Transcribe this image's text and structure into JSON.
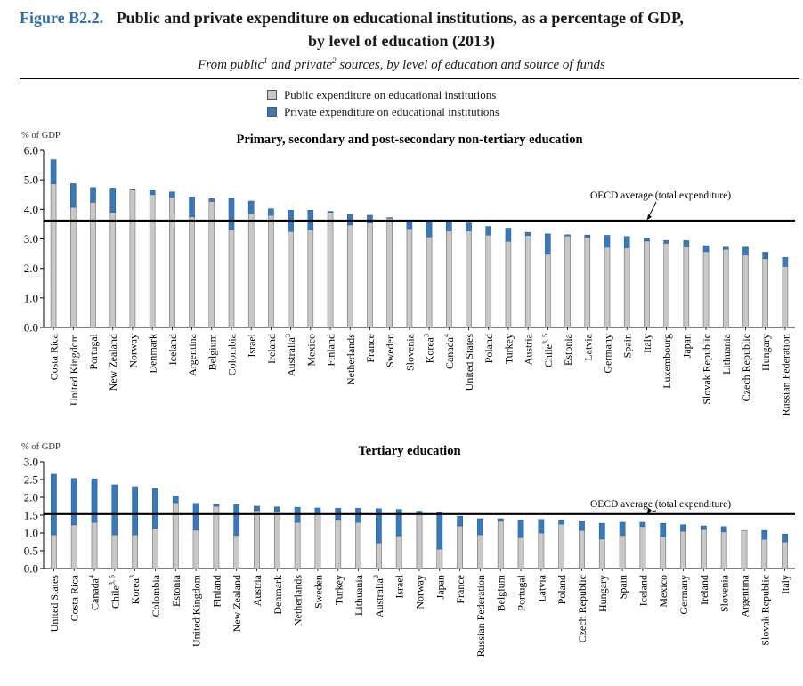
{
  "figure": {
    "label": "Figure B2.2.",
    "title_line1": "Public and private expenditure on educational institutions, as a percentage of GDP,",
    "title_line2": "by level of education (2013)",
    "subtitle_a": "From public",
    "subtitle_sup1": "1",
    "subtitle_b": " and private",
    "subtitle_sup2": "2",
    "subtitle_c": " sources, by level of education and source of funds"
  },
  "legend": {
    "public": "Public expenditure on educational institutions",
    "private": "Private expenditure on educational institutions",
    "public_color": "#c8c8c8",
    "private_color": "#3a79b9"
  },
  "chart_data": [
    {
      "type": "bar",
      "stacked": true,
      "title": "Primary, secondary and post-secondary non-tertiary education",
      "ylabel": "% of GDP",
      "ylim": [
        0,
        6
      ],
      "yticks": [
        "0.0",
        "1.0",
        "2.0",
        "3.0",
        "4.0",
        "5.0",
        "6.0"
      ],
      "reference_line": {
        "label": "OECD average (total expenditure)",
        "value": 3.62
      },
      "categories": [
        {
          "name": "Costa Rica",
          "sup": ""
        },
        {
          "name": "United Kingdom",
          "sup": ""
        },
        {
          "name": "Portugal",
          "sup": ""
        },
        {
          "name": "New Zealand",
          "sup": ""
        },
        {
          "name": "Norway",
          "sup": ""
        },
        {
          "name": "Denmark",
          "sup": ""
        },
        {
          "name": "Iceland",
          "sup": ""
        },
        {
          "name": "Argentina",
          "sup": ""
        },
        {
          "name": "Belgium",
          "sup": ""
        },
        {
          "name": "Colombia",
          "sup": ""
        },
        {
          "name": "Israel",
          "sup": ""
        },
        {
          "name": "Ireland",
          "sup": ""
        },
        {
          "name": "Australia",
          "sup": "3"
        },
        {
          "name": "Mexico",
          "sup": ""
        },
        {
          "name": "Finland",
          "sup": ""
        },
        {
          "name": "Netherlands",
          "sup": ""
        },
        {
          "name": "France",
          "sup": ""
        },
        {
          "name": "Sweden",
          "sup": ""
        },
        {
          "name": "Slovenia",
          "sup": ""
        },
        {
          "name": "Korea",
          "sup": "3"
        },
        {
          "name": "Canada",
          "sup": "4"
        },
        {
          "name": "United States",
          "sup": ""
        },
        {
          "name": "Poland",
          "sup": ""
        },
        {
          "name": "Turkey",
          "sup": ""
        },
        {
          "name": "Austria",
          "sup": ""
        },
        {
          "name": "Chile",
          "sup": "3, 5"
        },
        {
          "name": "Estonia",
          "sup": ""
        },
        {
          "name": "Latvia",
          "sup": ""
        },
        {
          "name": "Germany",
          "sup": ""
        },
        {
          "name": "Spain",
          "sup": ""
        },
        {
          "name": "Italy",
          "sup": ""
        },
        {
          "name": "Luxembourg",
          "sup": ""
        },
        {
          "name": "Japan",
          "sup": ""
        },
        {
          "name": "Slovak Republic",
          "sup": ""
        },
        {
          "name": "Lithuania",
          "sup": ""
        },
        {
          "name": "Czech Republic",
          "sup": ""
        },
        {
          "name": "Hungary",
          "sup": ""
        },
        {
          "name": "Russian Federation",
          "sup": ""
        }
      ],
      "series": [
        {
          "name": "Public expenditure on educational institutions",
          "values": [
            4.87,
            4.07,
            4.24,
            3.9,
            4.68,
            4.5,
            4.42,
            3.75,
            4.27,
            3.32,
            3.85,
            3.8,
            3.25,
            3.31,
            3.9,
            3.47,
            3.54,
            3.7,
            3.35,
            3.07,
            3.27,
            3.27,
            3.13,
            2.92,
            3.12,
            2.48,
            3.1,
            3.06,
            2.72,
            2.7,
            2.93,
            2.85,
            2.73,
            2.57,
            2.65,
            2.45,
            2.33,
            2.07
          ]
        },
        {
          "name": "Private expenditure on educational institutions",
          "values": [
            0.81,
            0.8,
            0.5,
            0.82,
            0.01,
            0.15,
            0.17,
            0.67,
            0.09,
            1.05,
            0.43,
            0.22,
            0.72,
            0.66,
            0.03,
            0.36,
            0.26,
            0.02,
            0.29,
            0.55,
            0.3,
            0.27,
            0.29,
            0.44,
            0.1,
            0.69,
            0.04,
            0.07,
            0.4,
            0.38,
            0.1,
            0.1,
            0.21,
            0.2,
            0.07,
            0.27,
            0.22,
            0.3
          ]
        }
      ]
    },
    {
      "type": "bar",
      "stacked": true,
      "title": "Tertiary education",
      "ylabel": "% of GDP",
      "ylim": [
        0,
        3
      ],
      "yticks": [
        "0.0",
        "0.5",
        "1.0",
        "1.5",
        "2.0",
        "2.5",
        "3.0"
      ],
      "reference_line": {
        "label": "OECD average (total expenditure)",
        "value": 1.53
      },
      "categories": [
        {
          "name": "United States",
          "sup": ""
        },
        {
          "name": "Costa Rica",
          "sup": ""
        },
        {
          "name": "Canada",
          "sup": "4"
        },
        {
          "name": "Chile",
          "sup": "3, 5"
        },
        {
          "name": "Korea",
          "sup": "3"
        },
        {
          "name": "Colombia",
          "sup": ""
        },
        {
          "name": "Estonia",
          "sup": ""
        },
        {
          "name": "United Kingdom",
          "sup": ""
        },
        {
          "name": "Finland",
          "sup": ""
        },
        {
          "name": "New Zealand",
          "sup": ""
        },
        {
          "name": "Austria",
          "sup": ""
        },
        {
          "name": "Denmark",
          "sup": ""
        },
        {
          "name": "Netherlands",
          "sup": ""
        },
        {
          "name": "Sweden",
          "sup": ""
        },
        {
          "name": "Turkey",
          "sup": ""
        },
        {
          "name": "Lithuania",
          "sup": ""
        },
        {
          "name": "Australia",
          "sup": "3"
        },
        {
          "name": "Israel",
          "sup": ""
        },
        {
          "name": "Norway",
          "sup": ""
        },
        {
          "name": "Japan",
          "sup": ""
        },
        {
          "name": "France",
          "sup": ""
        },
        {
          "name": "Russian Federation",
          "sup": ""
        },
        {
          "name": "Belgium",
          "sup": ""
        },
        {
          "name": "Portugal",
          "sup": ""
        },
        {
          "name": "Latvia",
          "sup": ""
        },
        {
          "name": "Poland",
          "sup": ""
        },
        {
          "name": "Czech Republic",
          "sup": ""
        },
        {
          "name": "Hungary",
          "sup": ""
        },
        {
          "name": "Spain",
          "sup": ""
        },
        {
          "name": "Iceland",
          "sup": ""
        },
        {
          "name": "Mexico",
          "sup": ""
        },
        {
          "name": "Germany",
          "sup": ""
        },
        {
          "name": "Ireland",
          "sup": ""
        },
        {
          "name": "Slovenia",
          "sup": ""
        },
        {
          "name": "Argentina",
          "sup": ""
        },
        {
          "name": "Slovak Republic",
          "sup": ""
        },
        {
          "name": "Italy",
          "sup": ""
        }
      ],
      "series": [
        {
          "name": "Public expenditure on educational institutions",
          "values": [
            0.95,
            1.23,
            1.3,
            0.95,
            0.95,
            1.13,
            1.85,
            1.08,
            1.75,
            0.93,
            1.63,
            1.6,
            1.3,
            1.53,
            1.38,
            1.3,
            0.72,
            0.92,
            1.55,
            0.55,
            1.2,
            0.95,
            1.33,
            0.87,
            1.0,
            1.25,
            1.07,
            0.83,
            0.93,
            1.18,
            0.9,
            1.05,
            1.1,
            1.03,
            1.07,
            0.82,
            0.75
          ]
        },
        {
          "name": "Private expenditure on educational institutions",
          "values": [
            1.7,
            1.3,
            1.22,
            1.4,
            1.35,
            1.12,
            0.18,
            0.75,
            0.06,
            0.86,
            0.12,
            0.13,
            0.42,
            0.17,
            0.31,
            0.39,
            0.96,
            0.74,
            0.06,
            1.02,
            0.27,
            0.45,
            0.07,
            0.5,
            0.38,
            0.12,
            0.27,
            0.44,
            0.37,
            0.12,
            0.37,
            0.18,
            0.1,
            0.15,
            0.0,
            0.25,
            0.22
          ]
        }
      ]
    }
  ]
}
